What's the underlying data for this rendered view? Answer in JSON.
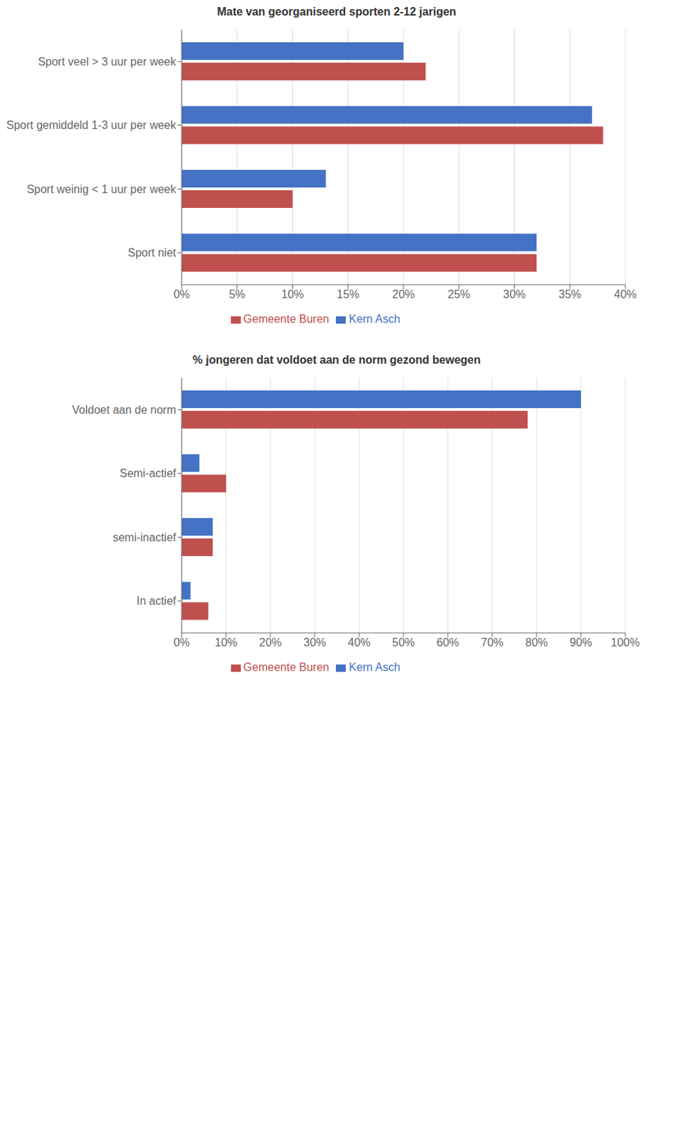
{
  "chart_data": [
    {
      "type": "bar",
      "orientation": "horizontal",
      "title": "Mate van georganiseerd sporten 2-12 jarigen",
      "categories": [
        "Sport veel > 3 uur per week",
        "Sport gemiddeld 1-3 uur per week",
        "Sport weinig < 1 uur per week",
        "Sport niet"
      ],
      "series": [
        {
          "name": "Kern Asch",
          "color": "#4472c4",
          "values": [
            20,
            37,
            13,
            32
          ]
        },
        {
          "name": "Gemeente Buren",
          "color": "#c0504d",
          "values": [
            22,
            38,
            10,
            32
          ]
        }
      ],
      "xlim": [
        0,
        40
      ],
      "xticks": [
        {
          "value": 0,
          "label": "0%"
        },
        {
          "value": 5,
          "label": "5%"
        },
        {
          "value": 10,
          "label": "10%"
        },
        {
          "value": 15,
          "label": "15%"
        },
        {
          "value": 20,
          "label": "20%"
        },
        {
          "value": 25,
          "label": "25%"
        },
        {
          "value": 30,
          "label": "30%"
        },
        {
          "value": 35,
          "label": "35%"
        },
        {
          "value": 40,
          "label": "40%"
        }
      ],
      "grid": true,
      "legend": "bottom"
    },
    {
      "type": "bar",
      "orientation": "horizontal",
      "title": "% jongeren dat voldoet aan de norm gezond bewegen",
      "categories": [
        "Voldoet aan de norm",
        "Semi-actief",
        "semi-inactief",
        "In actief"
      ],
      "series": [
        {
          "name": "Kern Asch",
          "color": "#4472c4",
          "values": [
            90,
            4,
            7,
            2
          ]
        },
        {
          "name": "Gemeente Buren",
          "color": "#c0504d",
          "values": [
            78,
            10,
            7,
            6
          ]
        }
      ],
      "xlim": [
        0,
        100
      ],
      "xticks": [
        {
          "value": 0,
          "label": "0%"
        },
        {
          "value": 10,
          "label": "10%"
        },
        {
          "value": 20,
          "label": "20%"
        },
        {
          "value": 30,
          "label": "30%"
        },
        {
          "value": 40,
          "label": "40%"
        },
        {
          "value": 50,
          "label": "50%"
        },
        {
          "value": 60,
          "label": "60%"
        },
        {
          "value": 70,
          "label": "70%"
        },
        {
          "value": 80,
          "label": "80%"
        },
        {
          "value": 90,
          "label": "90%"
        },
        {
          "value": 100,
          "label": "100%"
        }
      ],
      "grid": true,
      "legend": "bottom"
    }
  ]
}
